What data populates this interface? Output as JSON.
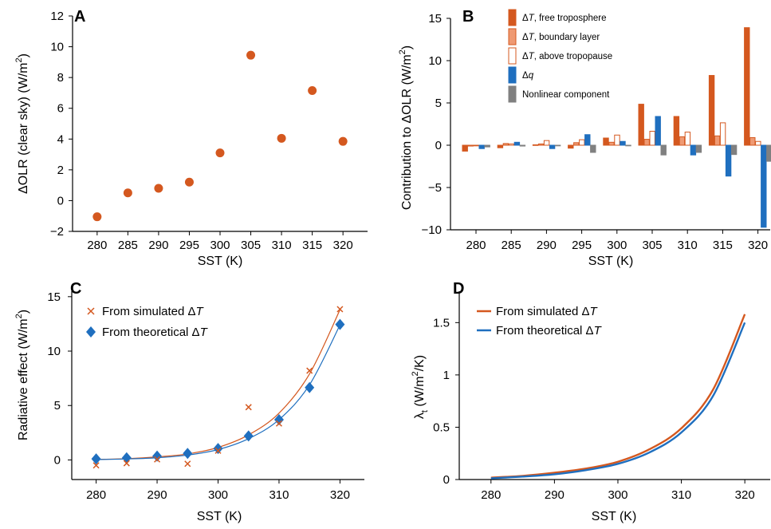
{
  "colors": {
    "orange": "#d4581f",
    "blue": "#1f6fbf",
    "gray": "#808080",
    "light_orange": "#ef9a73",
    "axis": "#000000"
  },
  "chart_data": [
    {
      "panel": "A",
      "type": "scatter",
      "xlabel": "SST (K)",
      "ylabel": "ΔOLR (clear sky) (W/m2)",
      "ylabel_main": "ΔOLR (clear sky) (W/m",
      "ylabel_sup": "2",
      "ylabel_tail": ")",
      "xlim": [
        276,
        324
      ],
      "ylim": [
        -2,
        12
      ],
      "xticks": [
        "280",
        "285",
        "290",
        "295",
        "300",
        "305",
        "310",
        "315",
        "320"
      ],
      "yticks": [
        "−2",
        "0",
        "2",
        "4",
        "6",
        "8",
        "10",
        "12"
      ],
      "x": [
        280,
        285,
        290,
        295,
        300,
        305,
        310,
        315,
        320
      ],
      "y": [
        -1.05,
        0.5,
        0.8,
        1.2,
        3.1,
        9.45,
        4.05,
        7.15,
        3.85
      ]
    },
    {
      "panel": "B",
      "type": "bar",
      "xlabel": "SST (K)",
      "ylabel": "Contribution to ΔOLR (W/m2)",
      "ylabel_main": "Contribution to ΔOLR (W/m",
      "ylabel_sup": "2",
      "ylabel_tail": ")",
      "ylim": [
        -10,
        15
      ],
      "categories": [
        "280",
        "285",
        "290",
        "295",
        "300",
        "305",
        "310",
        "315",
        "320"
      ],
      "yticks": [
        "−10",
        "−5",
        "0",
        "5",
        "10",
        "15"
      ],
      "legend_position": "top-left",
      "series": [
        {
          "name": "ΔT, free troposphere",
          "style": "orange",
          "values": [
            -0.7,
            -0.3,
            0.05,
            -0.35,
            0.85,
            4.85,
            3.4,
            8.25,
            13.9
          ]
        },
        {
          "name": "ΔT, boundary layer",
          "style": "light",
          "values": [
            -0.1,
            0.2,
            0.15,
            0.3,
            0.35,
            0.7,
            1.0,
            1.1,
            0.9
          ]
        },
        {
          "name": "ΔT, above tropopause",
          "style": "hollow",
          "values": [
            0.0,
            0.15,
            0.55,
            0.65,
            1.2,
            1.65,
            1.55,
            2.65,
            0.45
          ]
        },
        {
          "name": "Δq",
          "style": "blue",
          "values": [
            -0.4,
            0.35,
            -0.4,
            1.25,
            0.45,
            3.4,
            -1.15,
            -3.65,
            -9.7
          ]
        },
        {
          "name": "Nonlinear component",
          "style": "gray",
          "values": [
            -0.2,
            -0.1,
            -0.05,
            -0.85,
            -0.05,
            -1.15,
            -0.85,
            -1.1,
            -1.9
          ]
        }
      ],
      "legend": [
        {
          "prefix": "Δ",
          "ital": "T",
          "rest": ", free troposphere"
        },
        {
          "prefix": "Δ",
          "ital": "T",
          "rest": ", boundary layer"
        },
        {
          "prefix": "Δ",
          "ital": "T",
          "rest": ", above tropopause"
        },
        {
          "prefix": "Δ",
          "ital": "q",
          "rest": ""
        },
        {
          "prefix": "",
          "ital": "",
          "rest": "Nonlinear component"
        }
      ]
    },
    {
      "panel": "C",
      "type": "scatter",
      "xlabel": "SST (K)",
      "ylabel": "Radiative effect (W/m2)",
      "ylabel_main": "Radiative effect (W/m",
      "ylabel_sup": "2",
      "ylabel_tail": ")",
      "xlim": [
        276,
        324
      ],
      "ylim": [
        -1.8,
        15.5
      ],
      "xticks": [
        "280",
        "290",
        "300",
        "310",
        "320"
      ],
      "yticks": [
        "0",
        "5",
        "10",
        "15"
      ],
      "legend_position": "top-left",
      "series": [
        {
          "name": "From simulated ΔT",
          "marker": "x",
          "color": "orange",
          "x": [
            280,
            285,
            290,
            295,
            300,
            305,
            310,
            315,
            320
          ],
          "y": [
            -0.5,
            -0.3,
            0.05,
            -0.35,
            0.85,
            4.85,
            3.35,
            8.2,
            13.85
          ],
          "fit": [
            [
              280,
              0.05
            ],
            [
              285,
              0.12
            ],
            [
              290,
              0.28
            ],
            [
              295,
              0.55
            ],
            [
              300,
              1.15
            ],
            [
              305,
              2.3
            ],
            [
              310,
              4.3
            ],
            [
              315,
              7.9
            ],
            [
              320,
              13.8
            ]
          ]
        },
        {
          "name": "From theoretical ΔT",
          "marker": "diamond",
          "color": "blue",
          "x": [
            280,
            285,
            290,
            295,
            300,
            305,
            310,
            315,
            320
          ],
          "y": [
            0.1,
            0.2,
            0.35,
            0.6,
            1.05,
            2.2,
            3.7,
            6.65,
            12.45
          ],
          "fit": [
            [
              280,
              0.03
            ],
            [
              285,
              0.09
            ],
            [
              290,
              0.2
            ],
            [
              295,
              0.45
            ],
            [
              300,
              0.95
            ],
            [
              305,
              1.95
            ],
            [
              310,
              3.7
            ],
            [
              315,
              6.9
            ],
            [
              320,
              12.4
            ]
          ]
        }
      ],
      "legend": [
        {
          "text": "From simulated Δ",
          "ital": "T"
        },
        {
          "text": "From theoretical Δ",
          "ital": "T"
        }
      ]
    },
    {
      "panel": "D",
      "type": "line",
      "xlabel": "SST (K)",
      "ylabel": "λt (W/m2/K)",
      "ylabel_sym": "λ",
      "ylabel_sub": "t",
      "ylabel_mid": " (W/m",
      "ylabel_sup": "2",
      "ylabel_tail": "/K)",
      "xlim": [
        275,
        324
      ],
      "ylim": [
        0,
        1.8
      ],
      "xticks": [
        "280",
        "290",
        "300",
        "310",
        "320"
      ],
      "yticks": [
        "0",
        "0.5",
        "1",
        "1.5"
      ],
      "legend_position": "top-left",
      "series": [
        {
          "name": "From simulated ΔT",
          "color": "orange",
          "x": [
            280,
            285,
            290,
            295,
            300,
            305,
            310,
            315,
            320
          ],
          "y": [
            0.018,
            0.035,
            0.065,
            0.105,
            0.17,
            0.29,
            0.49,
            0.86,
            1.58
          ]
        },
        {
          "name": "From theoretical ΔT",
          "color": "blue",
          "x": [
            280,
            285,
            290,
            295,
            300,
            305,
            310,
            315,
            320
          ],
          "y": [
            0.012,
            0.028,
            0.05,
            0.09,
            0.15,
            0.26,
            0.45,
            0.8,
            1.5
          ]
        }
      ],
      "legend": [
        {
          "text": "From simulated Δ",
          "ital": "T"
        },
        {
          "text": "From theoretical Δ",
          "ital": "T"
        }
      ]
    }
  ]
}
